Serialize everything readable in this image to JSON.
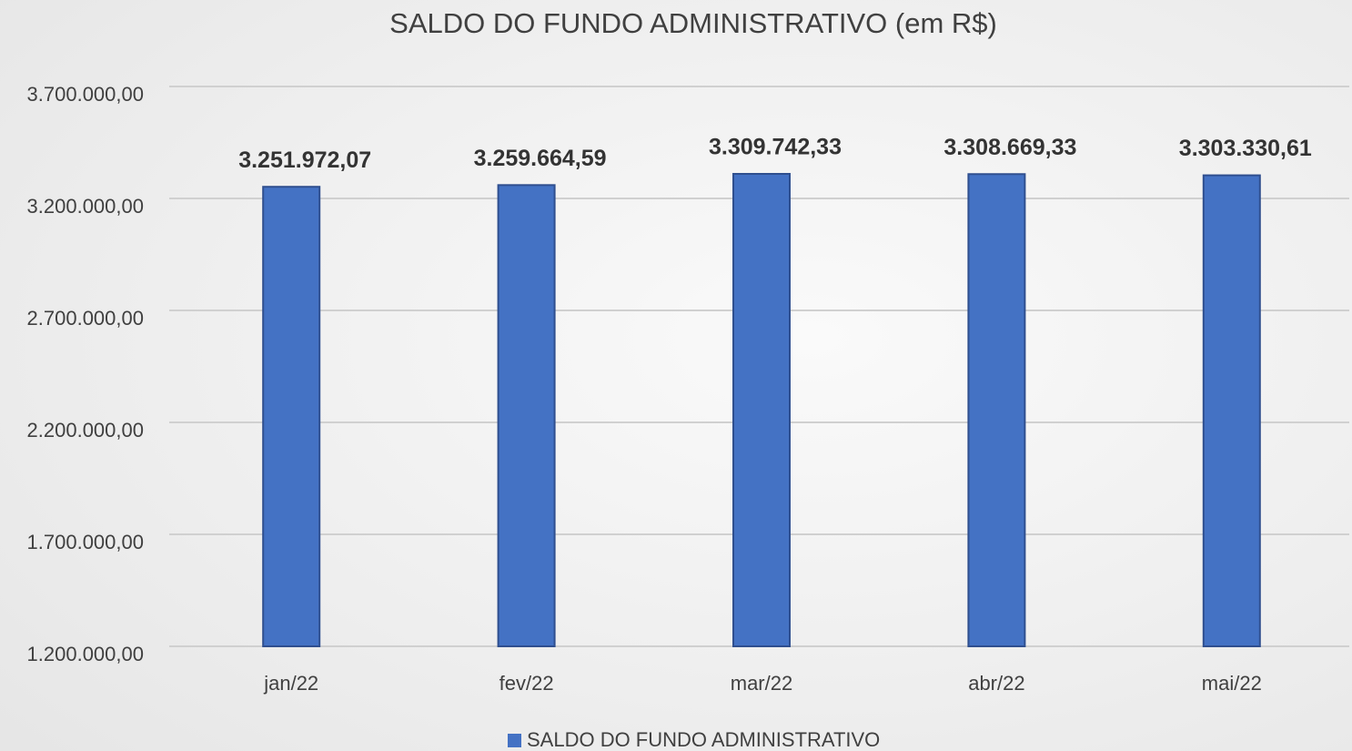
{
  "chart_data": {
    "type": "bar",
    "title": "SALDO DO FUNDO ADMINISTRATIVO (em R$)",
    "categories": [
      "jan/22",
      "fev/22",
      "mar/22",
      "abr/22",
      "mai/22"
    ],
    "series": [
      {
        "name": "SALDO DO FUNDO ADMINISTRATIVO",
        "color": "#4472c4",
        "values": [
          3251972.07,
          3259664.59,
          3309742.33,
          3308669.33,
          3303330.61
        ],
        "value_labels": [
          "3.251.972,07",
          "3.259.664,59",
          "3.309.742,33",
          "3.308.669,33",
          "3.303.330,61"
        ]
      }
    ],
    "ylim": [
      1200000,
      3700000
    ],
    "yticks": [
      {
        "value": 1200000,
        "label": "1.200.000,00"
      },
      {
        "value": 1700000,
        "label": "1.700.000,00"
      },
      {
        "value": 2200000,
        "label": "2.200.000,00"
      },
      {
        "value": 2700000,
        "label": "2.700.000,00"
      },
      {
        "value": 3200000,
        "label": "3.200.000,00"
      },
      {
        "value": 3700000,
        "label": "3.700.000,00"
      }
    ],
    "grid": true,
    "legend": "bottom"
  }
}
